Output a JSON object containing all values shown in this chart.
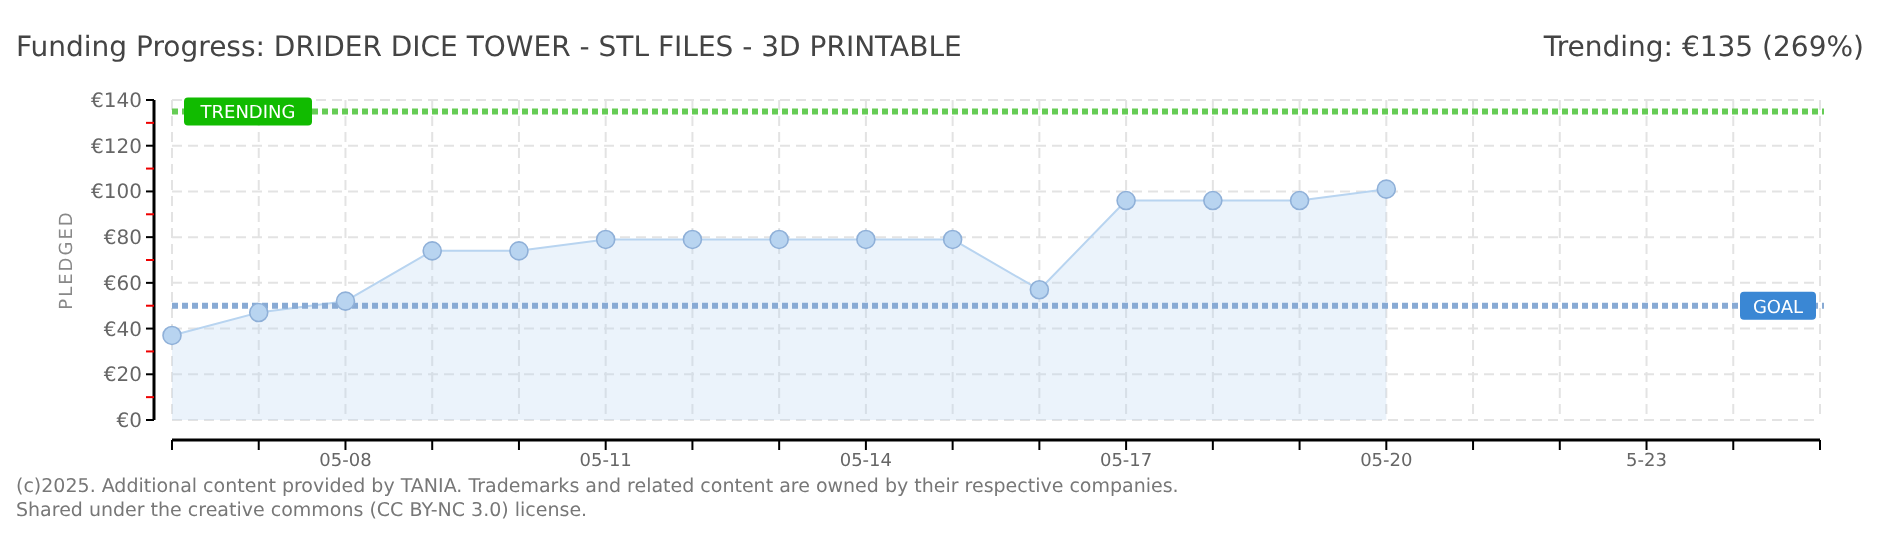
{
  "chart_data": {
    "type": "area",
    "title": "Funding Progress: DRIDER DICE TOWER - STL FILES - 3D PRINTABLE",
    "subtitle": "Trending:  €135 (269%)",
    "ylabel": "PLEDGED",
    "x": [
      "--05-06",
      "--05-07",
      "--05-08",
      "--05-09",
      "--05-10",
      "--05-11",
      "--05-12",
      "--05-13",
      "--05-14",
      "--05-15",
      "--05-16",
      "--05-17",
      "--05-18",
      "--05-19",
      "--05-20"
    ],
    "series": [
      {
        "color": "#b8d4f0",
        "values": [
          37,
          47,
          52,
          74,
          74,
          79,
          79,
          79,
          79,
          79,
          57,
          96,
          96,
          96,
          101
        ]
      }
    ],
    "xlim": [
      "--05-06",
      "--05-25"
    ],
    "xticks": [
      {
        "value": "--05-06",
        "label": null
      },
      {
        "value": "--05-07",
        "label": null
      },
      {
        "value": "--05-08",
        "label": "05-08"
      },
      {
        "value": "--05-09",
        "label": null
      },
      {
        "value": "--05-10",
        "label": null
      },
      {
        "value": "--05-11",
        "label": "05-11"
      },
      {
        "value": "--05-12",
        "label": null
      },
      {
        "value": "--05-13",
        "label": null
      },
      {
        "value": "--05-14",
        "label": "05-14"
      },
      {
        "value": "--05-15",
        "label": null
      },
      {
        "value": "--05-16",
        "label": null
      },
      {
        "value": "--05-17",
        "label": "05-17"
      },
      {
        "value": "--05-18",
        "label": null
      },
      {
        "value": "--05-19",
        "label": null
      },
      {
        "value": "--05-20",
        "label": "05-20"
      },
      {
        "value": "--05-21",
        "label": null
      },
      {
        "value": "--05-22",
        "label": null
      },
      {
        "value": "--05-23",
        "label": "5-23"
      },
      {
        "value": "--05-24",
        "label": null
      },
      {
        "value": "--05-25",
        "label": null
      }
    ],
    "ylim": [
      0,
      140
    ],
    "yticks": [
      {
        "value": 0,
        "label": "€0"
      },
      {
        "value": 10,
        "label": null
      },
      {
        "value": 20,
        "label": "€20"
      },
      {
        "value": 30,
        "label": null
      },
      {
        "value": 40,
        "label": "€40"
      },
      {
        "value": 50,
        "label": null
      },
      {
        "value": 60,
        "label": "€60"
      },
      {
        "value": 70,
        "label": null
      },
      {
        "value": 80,
        "label": "€80"
      },
      {
        "value": 90,
        "label": null
      },
      {
        "value": 100,
        "label": "€100"
      },
      {
        "value": 110,
        "label": null
      },
      {
        "value": 120,
        "label": "€120"
      },
      {
        "value": 130,
        "label": null
      },
      {
        "value": 140,
        "label": "€140"
      }
    ],
    "ref_lines": [
      {
        "axis": "y",
        "value": 135,
        "label": "TRENDING",
        "color": "#66cc55",
        "line_style": "dotted"
      },
      {
        "axis": "y",
        "value": 50,
        "label": "GOAL",
        "color": "#88aad4",
        "line_style": "dotted"
      }
    ],
    "annotations": [
      "(c)2025. Additional content provided by TANIA. Trademarks and related content are owned by their respective companies.",
      "Shared under the creative commons (CC BY-NC 3.0) license."
    ],
    "grid": true,
    "marker": "circle"
  }
}
